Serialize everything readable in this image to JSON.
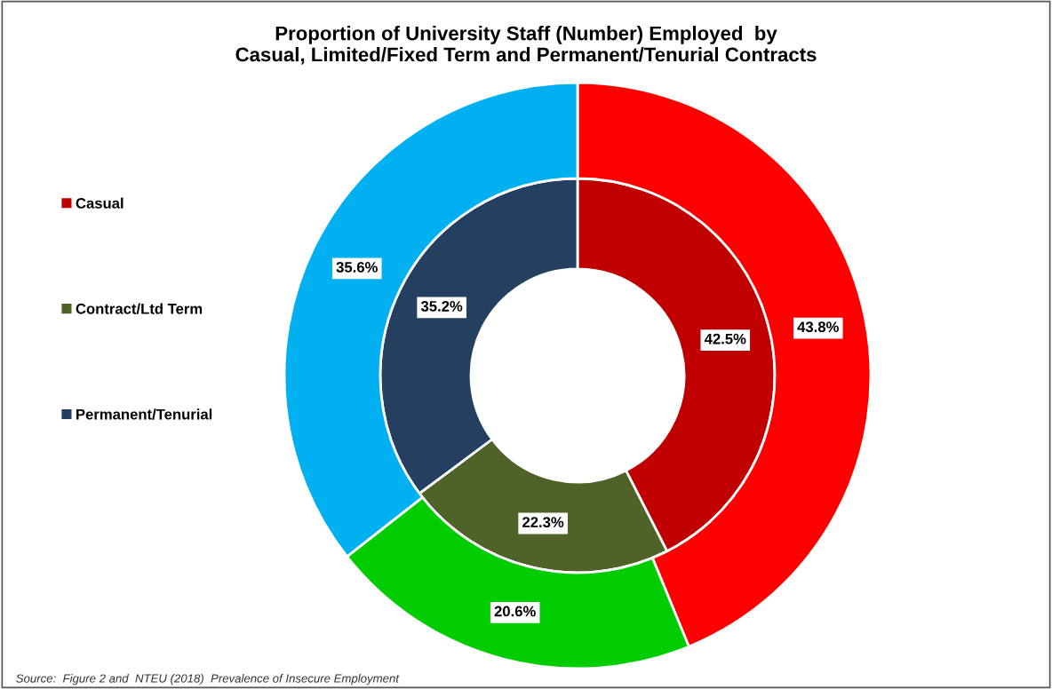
{
  "chart_data": {
    "type": "donut",
    "title": "Proportion of University Staff (Number) Employed  by\nCasual, Limited/Fixed Term and Permanent/Tenurial Contracts",
    "categories": [
      "Casual",
      "Contract/Ltd Term",
      "Permanent/Tenurial"
    ],
    "series": [
      {
        "colors": [
          "#c00000",
          "#4f6228",
          "#243f60"
        ],
        "values": [
          42.5,
          22.3,
          35.2
        ],
        "value_labels": [
          "42.5%",
          "22.3%",
          "35.2%"
        ]
      },
      {
        "colors": [
          "#ff0000",
          "#00cc00",
          "#00b0f0"
        ],
        "values": [
          43.8,
          20.6,
          35.6
        ],
        "value_labels": [
          "43.8%",
          "20.6%",
          "35.6%"
        ]
      }
    ],
    "legend": "left",
    "annotations": [
      "Source:  Figure 2 and  NTEU (2018)  Prevalence of Insecure Employment"
    ]
  }
}
